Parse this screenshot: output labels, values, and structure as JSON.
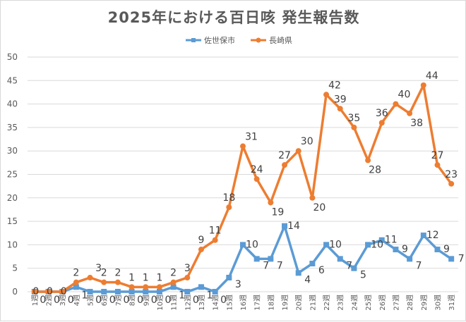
{
  "chart_data": {
    "type": "line",
    "title": "2025年における百日咳 発生報告数",
    "categories": [
      "1週",
      "2週",
      "3週",
      "4週",
      "5週",
      "6週",
      "7週",
      "8週",
      "9週",
      "10週",
      "11週",
      "12週",
      "13週",
      "14週",
      "15週",
      "16週",
      "17週",
      "18週",
      "19週",
      "20週",
      "21週",
      "22週",
      "23週",
      "24週",
      "25週",
      "26週",
      "27週",
      "28週",
      "29週",
      "30週",
      "31週"
    ],
    "ylim": [
      0,
      50
    ],
    "yticks": [
      0,
      5,
      10,
      15,
      20,
      25,
      30,
      35,
      40,
      45,
      50
    ],
    "grid": true,
    "legend_position": "top-center",
    "series": [
      {
        "name": "佐世保市",
        "color": "#5b9bd5",
        "values": [
          0,
          0,
          0,
          1,
          0,
          0,
          0,
          0,
          0,
          0,
          1,
          0,
          1,
          0,
          3,
          10,
          7,
          7,
          14,
          4,
          6,
          10,
          7,
          5,
          10,
          11,
          9,
          7,
          12,
          9,
          7
        ]
      },
      {
        "name": "長崎県",
        "color": "#ed7d31",
        "values": [
          0,
          0,
          0,
          2,
          3,
          2,
          2,
          1,
          1,
          1,
          2,
          3,
          9,
          11,
          18,
          31,
          24,
          19,
          27,
          30,
          20,
          42,
          39,
          35,
          28,
          36,
          40,
          38,
          44,
          27,
          23
        ]
      }
    ]
  }
}
